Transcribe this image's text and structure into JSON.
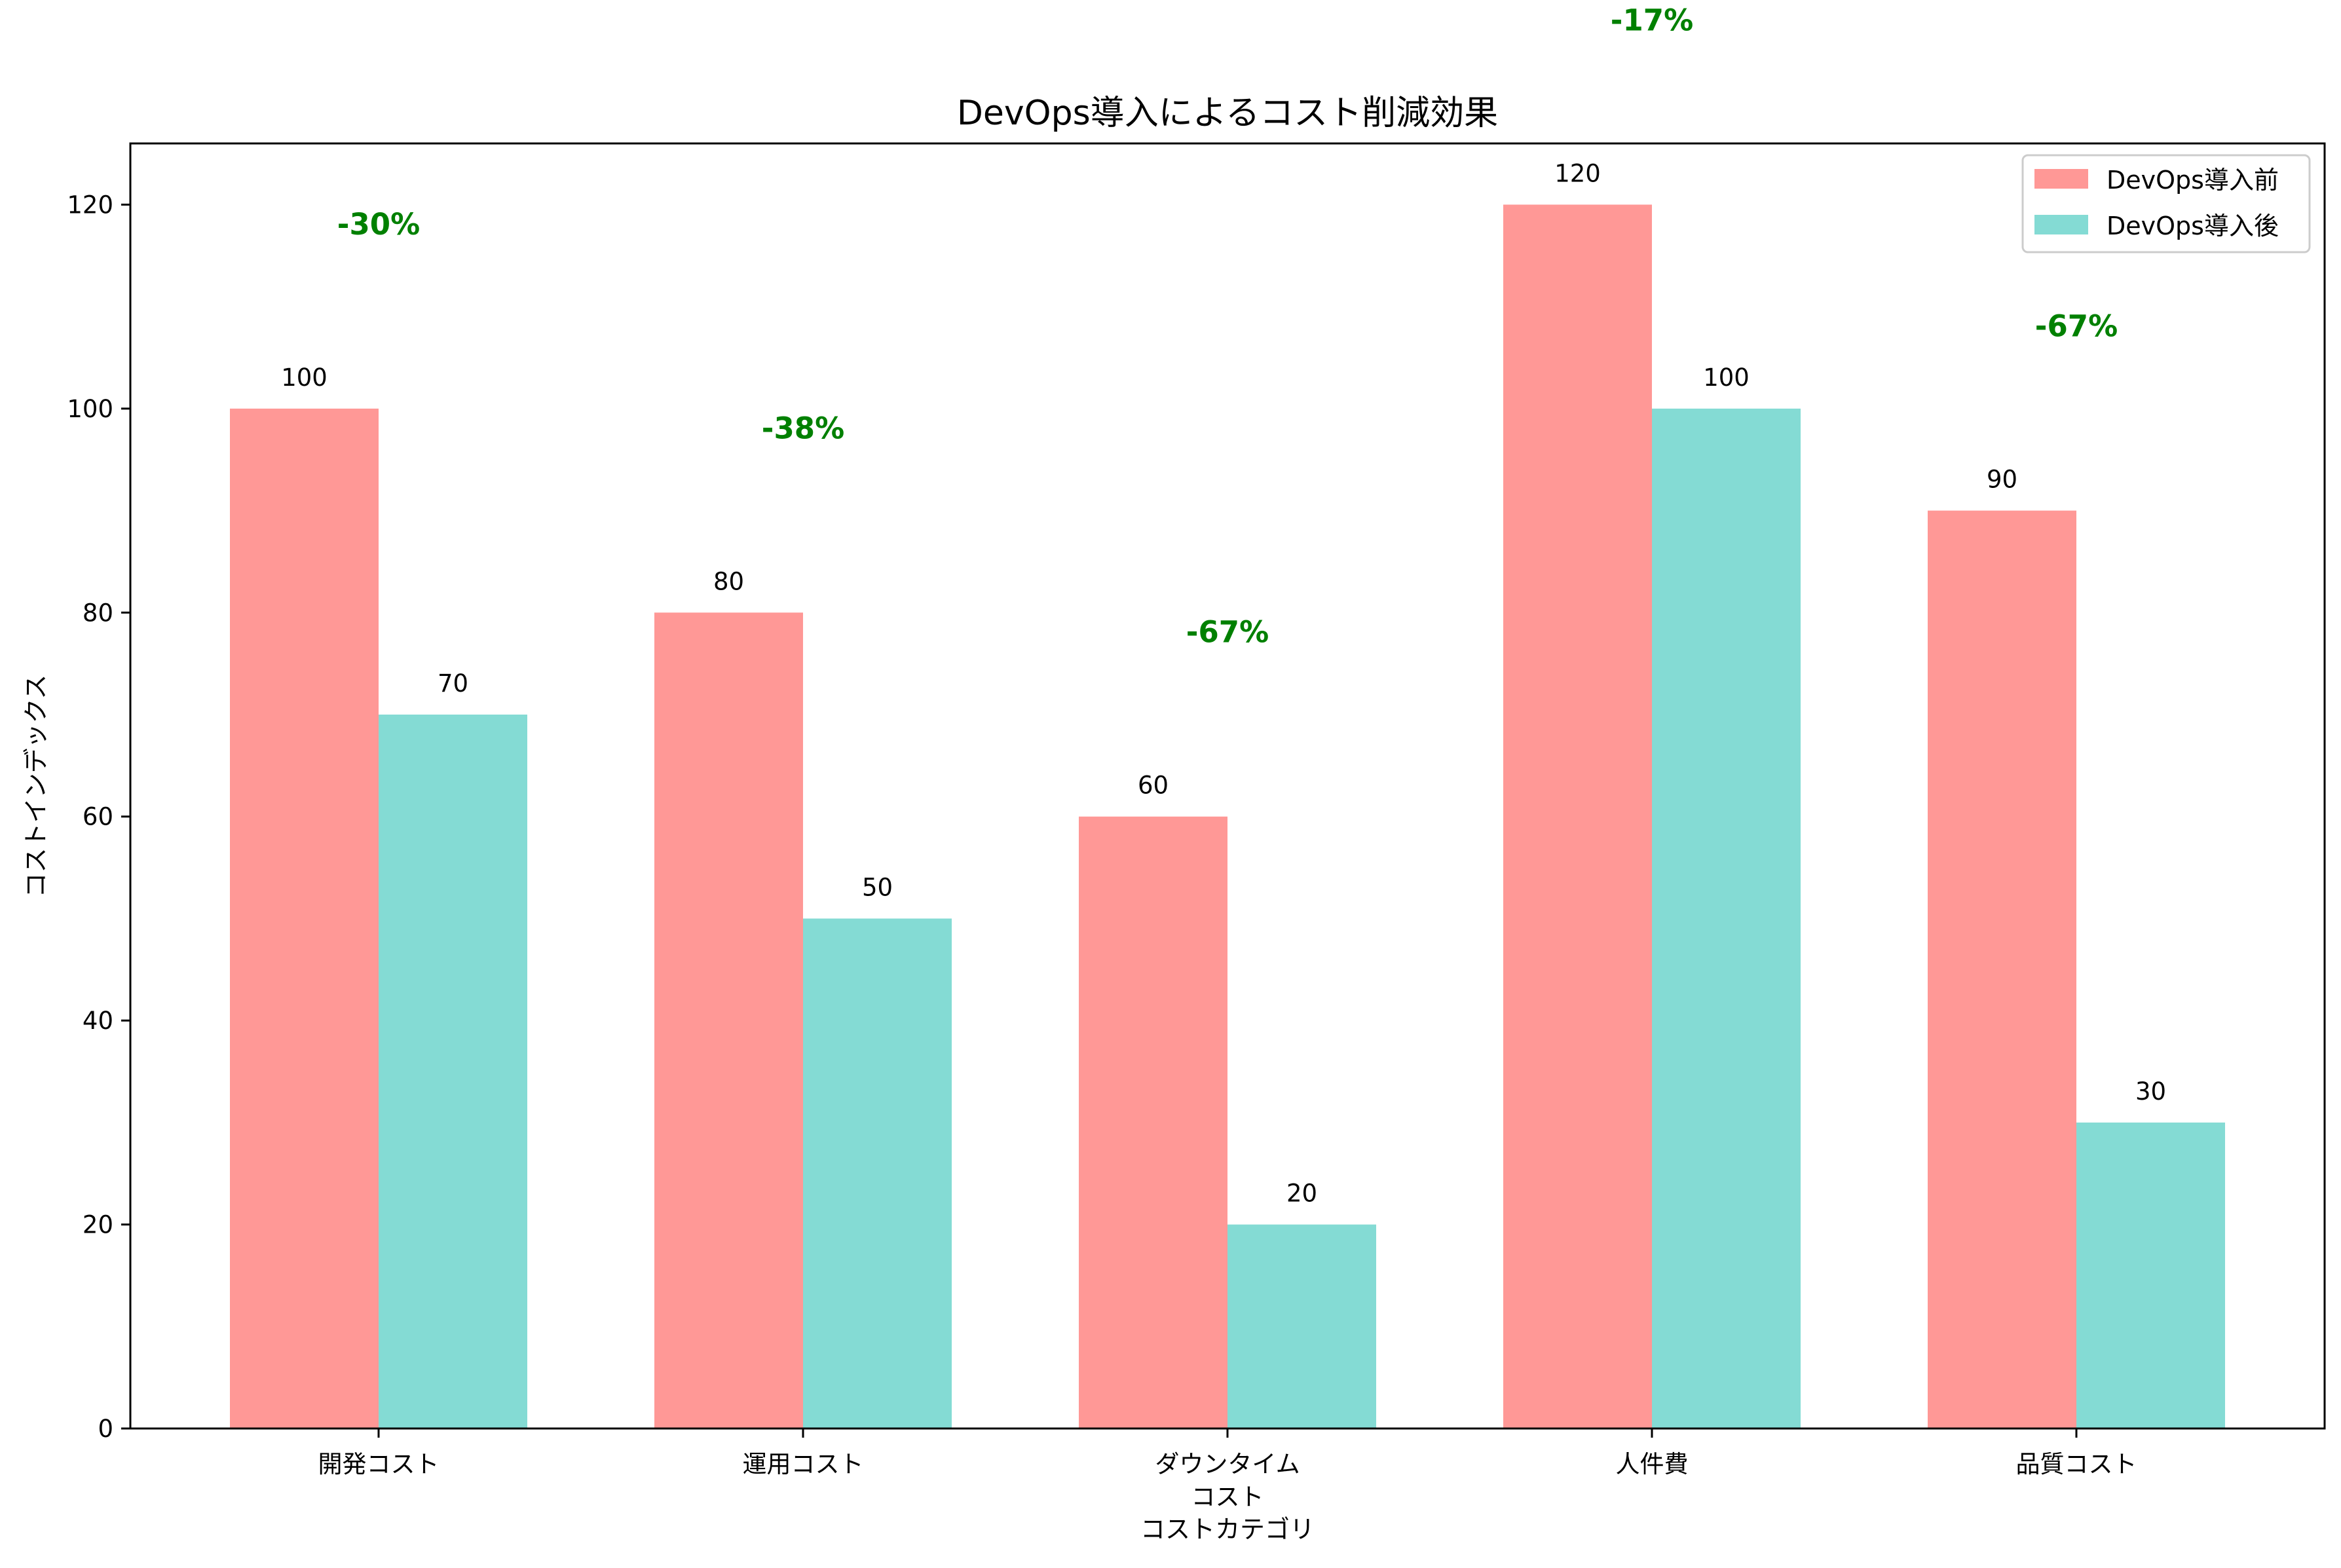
{
  "chart_data": {
    "type": "bar",
    "title": "DevOps導入によるコスト削減効果",
    "xlabel": "コストカテゴリ",
    "ylabel": "コストインデックス",
    "categories": [
      "開発コスト",
      "運用コスト",
      "ダウンタイム\nコスト",
      "人件費",
      "品質コスト"
    ],
    "series": [
      {
        "name": "DevOps導入前",
        "values": [
          100,
          80,
          60,
          120,
          90
        ],
        "color": "#ff9896"
      },
      {
        "name": "DevOps導入後",
        "values": [
          70,
          50,
          20,
          100,
          30
        ],
        "color": "#84dbd4"
      }
    ],
    "value_labels_before": [
      "100",
      "80",
      "60",
      "120",
      "90"
    ],
    "value_labels_after": [
      "70",
      "50",
      "20",
      "100",
      "30"
    ],
    "reduction_labels": [
      "-30%",
      "-38%",
      "-67%",
      "-17%",
      "-67%"
    ],
    "reduction_color": "#008000",
    "ylim": [
      0,
      126
    ],
    "yticks": [
      0,
      20,
      40,
      60,
      80,
      100,
      120
    ],
    "ytick_labels": [
      "0",
      "20",
      "40",
      "60",
      "80",
      "100",
      "120"
    ],
    "grid": false,
    "legend_position": "top-right"
  }
}
